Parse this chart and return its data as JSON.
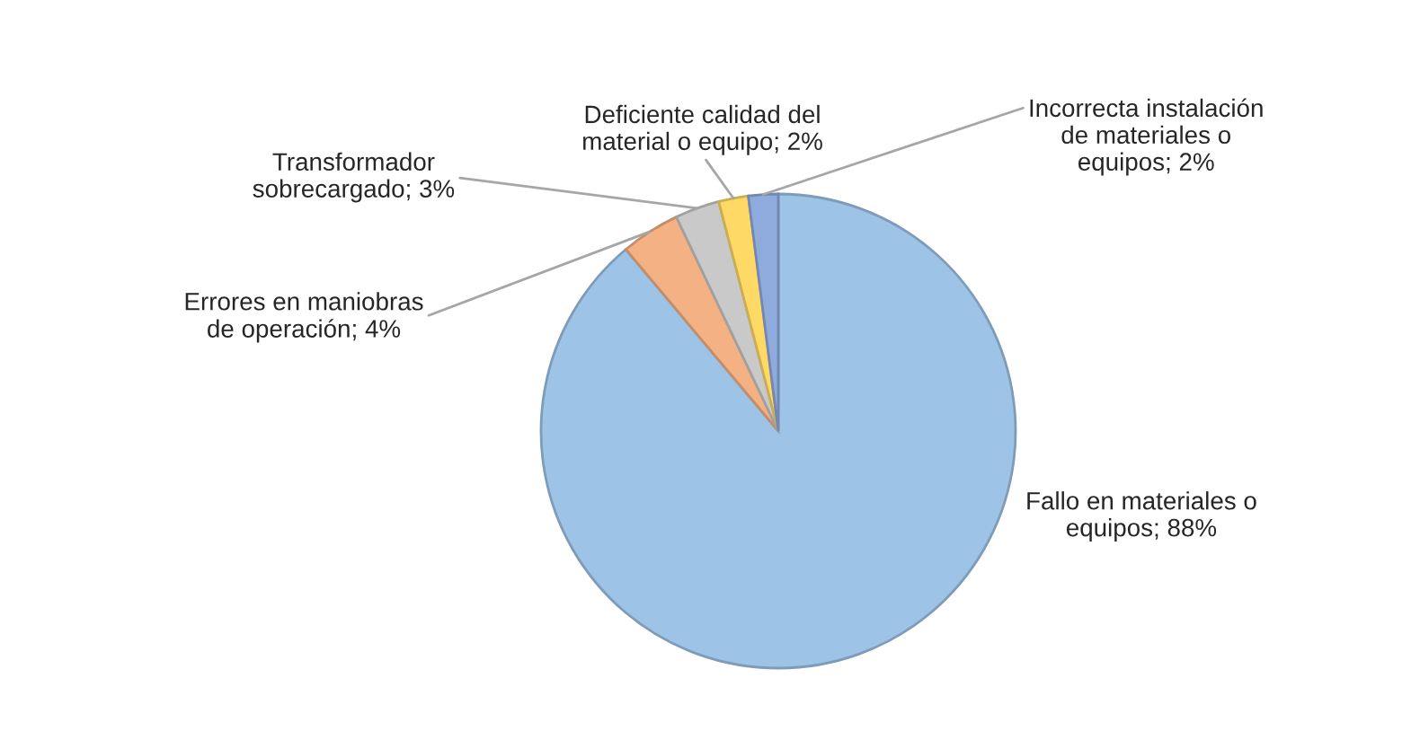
{
  "chart_data": {
    "type": "pie",
    "categories": [
      "Fallo en materiales o\nequipos",
      "Errores en maniobras\nde operación",
      "Transformador\nsobrecargado",
      "Deficiente calidad del\nmaterial o equipo",
      "Incorrecta instalación\nde materiales o\nequipos"
    ],
    "values": [
      88,
      4,
      3,
      2,
      2
    ],
    "colors": [
      "#9dc3e6",
      "#f4b183",
      "#c9c9c9",
      "#ffd966",
      "#8faadc"
    ],
    "value_labels": [
      "88%",
      "4%",
      "3%",
      "2%",
      "2%"
    ]
  }
}
